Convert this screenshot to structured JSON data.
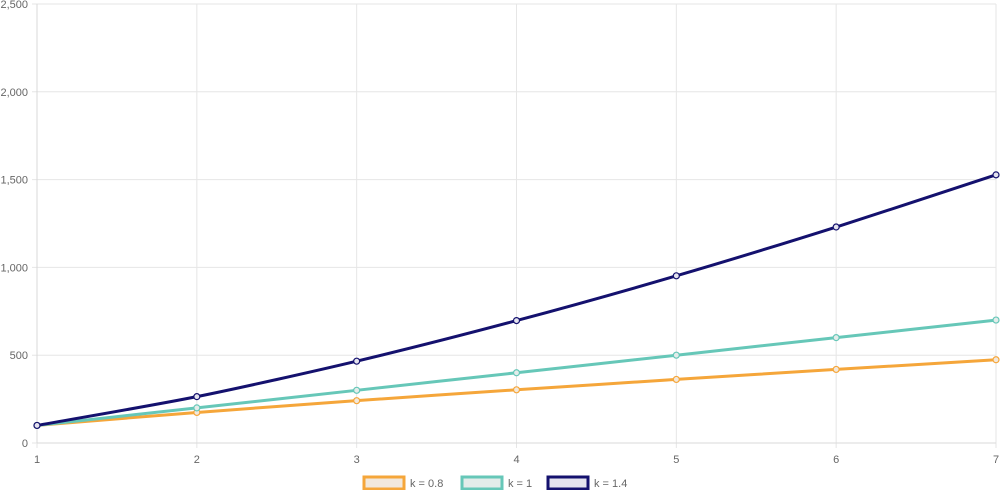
{
  "chart_data": {
    "type": "line",
    "x": [
      1,
      2,
      3,
      4,
      5,
      6,
      7
    ],
    "x_tick_labels": [
      "1",
      "2",
      "3",
      "4",
      "5",
      "6",
      "7"
    ],
    "ylim": [
      0,
      2500
    ],
    "y_ticks": [
      0,
      500,
      1000,
      1500,
      2000,
      2500
    ],
    "y_tick_labels": [
      "0",
      "500",
      "1,000",
      "1,500",
      "2,000",
      "2,500"
    ],
    "grid": true,
    "legend_position": "bottom",
    "series": [
      {
        "name": "k = 0.8",
        "color": "#f5a63a",
        "fill": "#f2e8dc",
        "values": [
          100,
          174,
          241,
          303,
          362,
          419,
          474
        ]
      },
      {
        "name": "k = 1",
        "color": "#66c7b8",
        "fill": "#e3ecea",
        "values": [
          100,
          200,
          300,
          400,
          500,
          600,
          700
        ]
      },
      {
        "name": "k = 1.4",
        "color": "#14116e",
        "fill": "#e4e3ee",
        "values": [
          100,
          264,
          466,
          697,
          952,
          1230,
          1527
        ]
      }
    ]
  }
}
